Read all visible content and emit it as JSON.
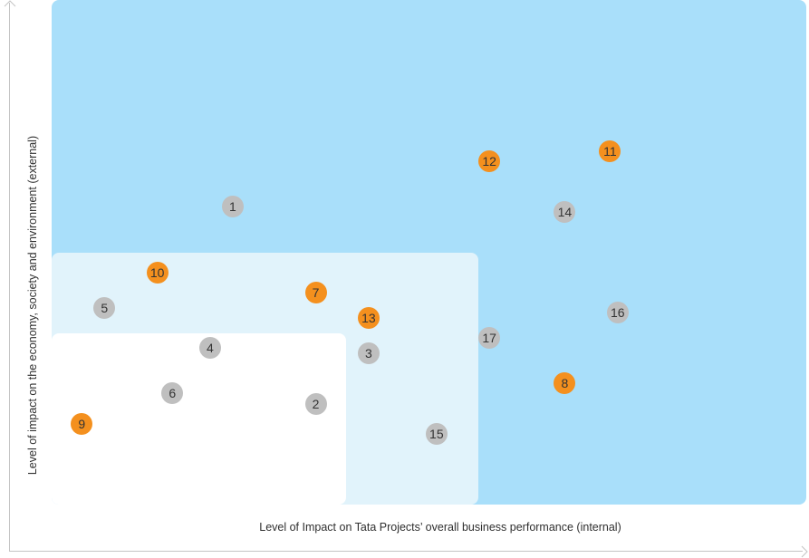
{
  "chart_data": {
    "type": "scatter",
    "title": "",
    "xlabel": "Level of Impact on Tata Projects’ overall business performance (internal)",
    "ylabel": "Level of impact on the economy, society and environment (external)",
    "xlim": [
      0,
      10
    ],
    "ylim": [
      0,
      10
    ],
    "grid": false,
    "zones": [
      {
        "level": "high",
        "color": "#a9dffa",
        "x": [
          0,
          10
        ],
        "y": [
          0,
          10
        ]
      },
      {
        "level": "medium",
        "color": "#e1f3fb",
        "x": [
          0,
          5.65
        ],
        "y": [
          0,
          5.0
        ]
      },
      {
        "level": "low",
        "color": "#ffffff",
        "x": [
          0,
          3.9
        ],
        "y": [
          0,
          3.4
        ]
      }
    ],
    "series": [
      {
        "color": "#bfbfbf",
        "points": [
          {
            "label": "1",
            "x": 2.4,
            "y": 5.9
          },
          {
            "label": "2",
            "x": 3.5,
            "y": 2.0
          },
          {
            "label": "3",
            "x": 4.2,
            "y": 3.0
          },
          {
            "label": "4",
            "x": 2.1,
            "y": 3.1
          },
          {
            "label": "5",
            "x": 0.7,
            "y": 3.9
          },
          {
            "label": "6",
            "x": 1.6,
            "y": 2.2
          },
          {
            "label": "14",
            "x": 6.8,
            "y": 5.8
          },
          {
            "label": "15",
            "x": 5.1,
            "y": 1.4
          },
          {
            "label": "16",
            "x": 7.5,
            "y": 3.8
          },
          {
            "label": "17",
            "x": 5.8,
            "y": 3.3
          }
        ]
      },
      {
        "color": "#f4901e",
        "points": [
          {
            "label": "7",
            "x": 3.5,
            "y": 4.2
          },
          {
            "label": "8",
            "x": 6.8,
            "y": 2.4
          },
          {
            "label": "9",
            "x": 0.4,
            "y": 1.6
          },
          {
            "label": "10",
            "x": 1.4,
            "y": 4.6
          },
          {
            "label": "11",
            "x": 7.4,
            "y": 7.0
          },
          {
            "label": "12",
            "x": 5.8,
            "y": 6.8
          },
          {
            "label": "13",
            "x": 4.2,
            "y": 3.7
          }
        ]
      }
    ]
  }
}
